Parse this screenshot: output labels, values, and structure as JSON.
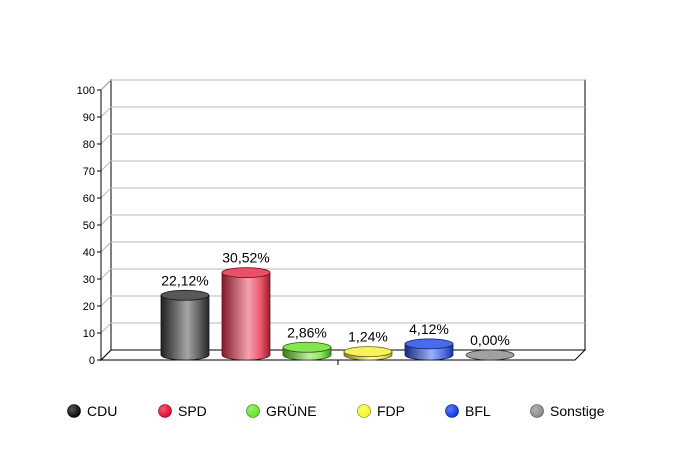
{
  "chart_data": {
    "type": "bar",
    "title": "",
    "xlabel": "",
    "ylabel": "",
    "ylim": [
      0,
      100
    ],
    "yticks": [
      0,
      10,
      20,
      30,
      40,
      50,
      60,
      70,
      80,
      90,
      100
    ],
    "grid": true,
    "three_d": true,
    "bar_shape": "cylinder",
    "legend_position": "bottom",
    "categories": [
      "CDU",
      "SPD",
      "GRÜNE",
      "FDP",
      "BFL",
      "Sonstige"
    ],
    "values": [
      22.12,
      30.52,
      2.86,
      1.24,
      4.12,
      0.0
    ],
    "value_labels": [
      "22,12%",
      "30,52%",
      "2,86%",
      "1,24%",
      "4,12%",
      "0,00%"
    ],
    "colors": [
      "#3a3a3a",
      "#e8304a",
      "#6ee030",
      "#f4f040",
      "#2850e8",
      "#909090"
    ]
  },
  "legend": {
    "items": [
      {
        "label": "CDU",
        "color": "#000000"
      },
      {
        "label": "SPD",
        "color": "#e8002c"
      },
      {
        "label": "GRÜNE",
        "color": "#5ce61e"
      },
      {
        "label": "FDP",
        "color": "#f8f820"
      },
      {
        "label": "BFL",
        "color": "#0a32e6"
      },
      {
        "label": "Sonstige",
        "color": "#888888"
      }
    ]
  }
}
